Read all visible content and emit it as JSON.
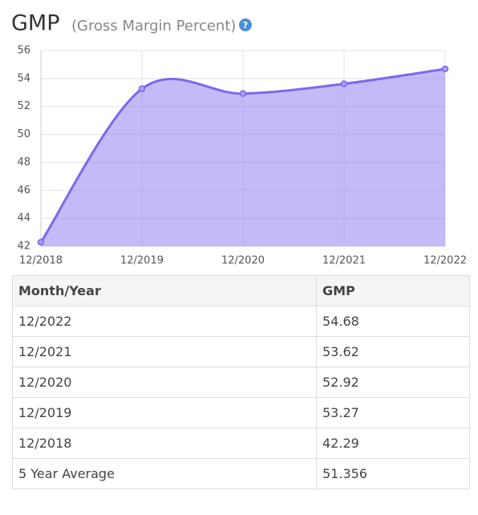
{
  "chart_data": {
    "type": "area",
    "title": "GMP",
    "subtitle": "(Gross Margin Percent)",
    "help_label": "?",
    "categories": [
      "12/2018",
      "12/2019",
      "12/2020",
      "12/2021",
      "12/2022"
    ],
    "values": [
      42.29,
      53.27,
      52.92,
      53.62,
      54.68
    ],
    "color": "#7b68ee",
    "ylim": [
      42,
      56
    ],
    "yticks": [
      42,
      44,
      46,
      48,
      50,
      52,
      54,
      56
    ],
    "grid": true
  },
  "table": {
    "header": [
      "Month/Year",
      "GMP"
    ],
    "rows": [
      [
        "12/2022",
        "54.68"
      ],
      [
        "12/2021",
        "53.62"
      ],
      [
        "12/2020",
        "52.92"
      ],
      [
        "12/2019",
        "53.27"
      ],
      [
        "12/2018",
        "42.29"
      ],
      [
        "5 Year Average",
        "51.356"
      ]
    ]
  }
}
